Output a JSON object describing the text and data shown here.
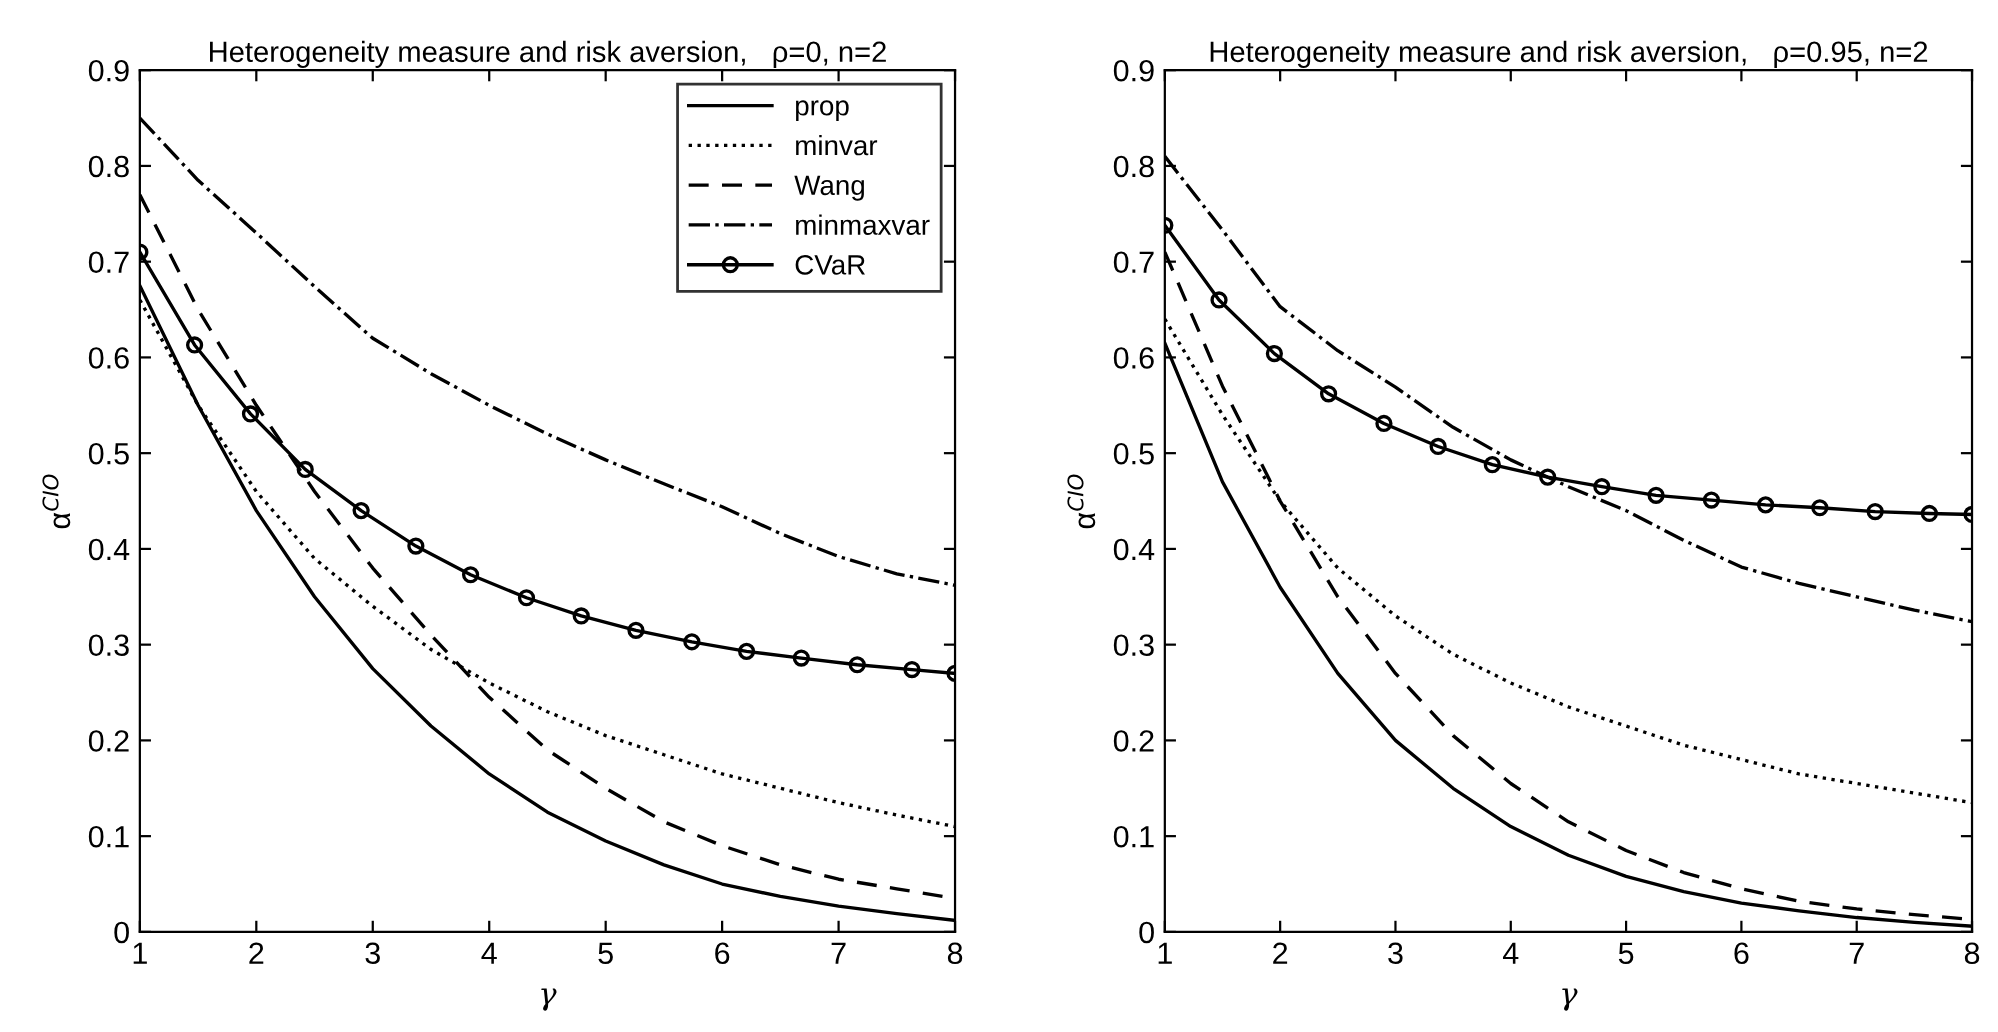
{
  "chart_data": [
    {
      "type": "line",
      "title": "Heterogeneity measure and risk aversion,   ρ=0, n=2",
      "xlabel": "γ",
      "ylabel": "α$^{CIO}$",
      "xlim": [
        1,
        8
      ],
      "xticks": [
        1,
        2,
        3,
        4,
        5,
        6,
        7,
        8
      ],
      "ylim": [
        0,
        0.9
      ],
      "yticks": [
        0,
        0.1,
        0.2,
        0.3,
        0.4,
        0.5,
        0.6,
        0.7,
        0.8,
        0.9
      ],
      "grid": false,
      "legend": "top right",
      "x": [
        1,
        1.5,
        2,
        2.5,
        3,
        3.5,
        4,
        4.5,
        5,
        5.5,
        6,
        6.5,
        7,
        7.5,
        8
      ],
      "series": [
        {
          "name": "prop",
          "color": "#000000",
          "line_style": "solid",
          "marker": "none",
          "values": [
            0.675,
            0.55,
            0.44,
            0.35,
            0.275,
            0.215,
            0.165,
            0.125,
            0.095,
            0.07,
            0.05,
            0.037,
            0.027,
            0.019,
            0.012
          ]
        },
        {
          "name": "minvar",
          "color": "#000000",
          "line_style": "dotted",
          "marker": "none",
          "values": [
            0.66,
            0.55,
            0.46,
            0.39,
            0.34,
            0.295,
            0.26,
            0.23,
            0.205,
            0.185,
            0.165,
            0.15,
            0.135,
            0.122,
            0.11
          ]
        },
        {
          "name": "Wang",
          "color": "#000000",
          "line_style": "dashed",
          "marker": "none",
          "values": [
            0.77,
            0.65,
            0.55,
            0.46,
            0.38,
            0.31,
            0.245,
            0.19,
            0.15,
            0.115,
            0.09,
            0.07,
            0.055,
            0.045,
            0.035
          ]
        },
        {
          "name": "minmaxvar",
          "color": "#000000",
          "line_style": "dashdot",
          "marker": "none",
          "values": [
            0.85,
            0.785,
            0.73,
            0.674,
            0.62,
            0.583,
            0.55,
            0.52,
            0.493,
            0.468,
            0.444,
            0.416,
            0.392,
            0.374,
            0.362
          ]
        },
        {
          "name": "CVaR",
          "color": "#000000",
          "line_style": "solid",
          "marker": "circle",
          "x": [
            1,
            1.47,
            1.95,
            2.42,
            2.9,
            3.37,
            3.84,
            4.32,
            4.79,
            5.26,
            5.74,
            6.21,
            6.68,
            7.16,
            7.63,
            8
          ],
          "values": [
            0.71,
            0.613,
            0.541,
            0.483,
            0.44,
            0.403,
            0.373,
            0.349,
            0.33,
            0.315,
            0.303,
            0.293,
            0.286,
            0.279,
            0.274,
            0.27
          ]
        }
      ]
    },
    {
      "type": "line",
      "title": "Heterogeneity measure and risk aversion,   ρ=0.95, n=2",
      "xlabel": "γ",
      "ylabel": "α$^{CIO}$",
      "xlim": [
        1,
        8
      ],
      "xticks": [
        1,
        2,
        3,
        4,
        5,
        6,
        7,
        8
      ],
      "ylim": [
        0,
        0.9
      ],
      "yticks": [
        0,
        0.1,
        0.2,
        0.3,
        0.4,
        0.5,
        0.6,
        0.7,
        0.8,
        0.9
      ],
      "grid": false,
      "x": [
        1,
        1.5,
        2,
        2.5,
        3,
        3.5,
        4,
        4.5,
        5,
        5.5,
        6,
        6.5,
        7,
        7.5,
        8
      ],
      "series": [
        {
          "color": "#000000",
          "line_style": "solid",
          "marker": "none",
          "values": [
            0.615,
            0.47,
            0.36,
            0.27,
            0.2,
            0.15,
            0.11,
            0.08,
            0.058,
            0.042,
            0.03,
            0.022,
            0.015,
            0.01,
            0.006
          ]
        },
        {
          "color": "#000000",
          "line_style": "dotted",
          "marker": "none",
          "values": [
            0.64,
            0.54,
            0.45,
            0.38,
            0.33,
            0.29,
            0.26,
            0.235,
            0.215,
            0.195,
            0.18,
            0.165,
            0.155,
            0.145,
            0.135
          ]
        },
        {
          "color": "#000000",
          "line_style": "dashed",
          "marker": "none",
          "values": [
            0.71,
            0.57,
            0.45,
            0.35,
            0.27,
            0.205,
            0.155,
            0.115,
            0.085,
            0.062,
            0.045,
            0.032,
            0.024,
            0.018,
            0.013
          ]
        },
        {
          "color": "#000000",
          "line_style": "dashdot",
          "marker": "none",
          "values": [
            0.81,
            0.733,
            0.653,
            0.607,
            0.569,
            0.527,
            0.493,
            0.465,
            0.44,
            0.409,
            0.381,
            0.364,
            0.35,
            0.336,
            0.324
          ]
        },
        {
          "color": "#000000",
          "line_style": "solid",
          "marker": "circle",
          "x": [
            1,
            1.47,
            1.95,
            2.42,
            2.9,
            3.37,
            3.84,
            4.32,
            4.79,
            5.26,
            5.74,
            6.21,
            6.68,
            7.16,
            7.63,
            8
          ],
          "values": [
            0.738,
            0.66,
            0.604,
            0.562,
            0.531,
            0.507,
            0.488,
            0.475,
            0.465,
            0.456,
            0.451,
            0.446,
            0.443,
            0.439,
            0.437,
            0.436
          ]
        }
      ]
    }
  ]
}
